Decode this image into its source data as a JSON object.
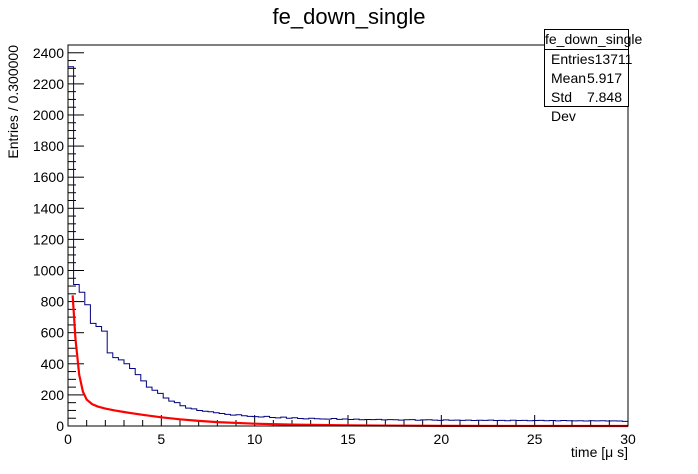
{
  "chart_data": {
    "type": "histogram",
    "title": "fe_down_single",
    "xlabel": "time [μ s]",
    "ylabel": "Entries / 0.300000",
    "xlim": [
      0,
      30
    ],
    "ylim": [
      0,
      2450
    ],
    "xticks": [
      0,
      5,
      10,
      15,
      20,
      25,
      30
    ],
    "yticks": [
      0,
      200,
      400,
      600,
      800,
      1000,
      1200,
      1400,
      1600,
      1800,
      2000,
      2200,
      2400
    ],
    "bin_width": 0.3,
    "histogram": {
      "color": "#000080",
      "bin_start": 0,
      "values": [
        2310,
        910,
        860,
        780,
        660,
        640,
        610,
        470,
        440,
        425,
        400,
        370,
        330,
        290,
        250,
        230,
        210,
        180,
        160,
        150,
        130,
        115,
        110,
        100,
        95,
        92,
        85,
        80,
        75,
        70,
        72,
        66,
        62,
        60,
        58,
        62,
        55,
        52,
        57,
        50,
        53,
        48,
        46,
        50,
        47,
        45,
        44,
        48,
        43,
        45,
        42,
        44,
        40,
        42,
        41,
        43,
        39,
        41,
        40,
        38,
        40,
        41,
        37,
        39,
        40,
        38,
        36,
        39,
        37,
        38,
        36,
        38,
        35,
        37,
        36,
        38,
        35,
        36,
        34,
        37,
        35,
        36,
        34,
        35,
        36,
        34,
        35,
        33,
        35,
        34,
        33,
        34,
        32,
        34,
        33,
        34,
        32,
        33,
        32,
        30
      ]
    },
    "fit": {
      "color": "#ff0000",
      "x": [
        0.25,
        0.4,
        0.6,
        0.8,
        1.0,
        1.3,
        1.6,
        2.0,
        2.5,
        3.0,
        4.0,
        5.0,
        6.0,
        7.0,
        8.0,
        10.0,
        12.0,
        15.0,
        20.0,
        25.0,
        30.0
      ],
      "y": [
        840,
        560,
        330,
        220,
        170,
        140,
        125,
        112,
        100,
        90,
        72,
        56,
        43,
        33,
        25,
        15,
        9,
        4,
        1,
        0.3,
        0.1
      ]
    },
    "grid": false,
    "legend": "top-right"
  },
  "stats_box": {
    "title": "fe_down_single",
    "rows": [
      {
        "label": "Entries",
        "value": "13711"
      },
      {
        "label": "Mean",
        "value": "5.917"
      },
      {
        "label": "Std Dev",
        "value": "7.848"
      }
    ]
  }
}
